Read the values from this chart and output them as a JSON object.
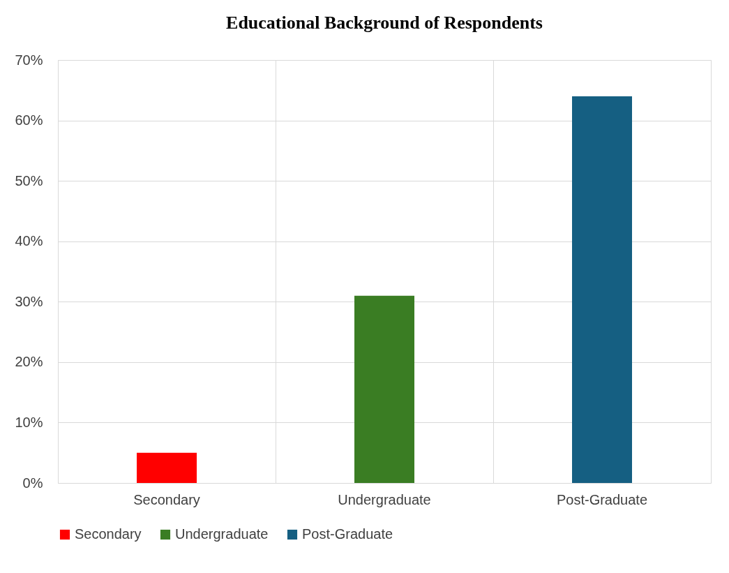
{
  "chart_data": {
    "type": "bar",
    "title": "Educational Background of Respondents",
    "categories": [
      "Secondary",
      "Undergraduate",
      "Post-Graduate"
    ],
    "series": [
      {
        "name": "Secondary",
        "color": "#ff0000",
        "values": [
          5,
          null,
          null
        ]
      },
      {
        "name": "Undergraduate",
        "color": "#3a7d23",
        "values": [
          null,
          31,
          null
        ]
      },
      {
        "name": "Post-Graduate",
        "color": "#155f82",
        "values": [
          null,
          null,
          64
        ]
      }
    ],
    "ylim": [
      0,
      70
    ],
    "yticks": [
      {
        "value": 0,
        "label": "0%"
      },
      {
        "value": 10,
        "label": "10%"
      },
      {
        "value": 20,
        "label": "20%"
      },
      {
        "value": 30,
        "label": "30%"
      },
      {
        "value": 40,
        "label": "40%"
      },
      {
        "value": 50,
        "label": "50%"
      },
      {
        "value": 60,
        "label": "60%"
      },
      {
        "value": 70,
        "label": "70%"
      }
    ],
    "grid": true,
    "legend": "bottom"
  }
}
